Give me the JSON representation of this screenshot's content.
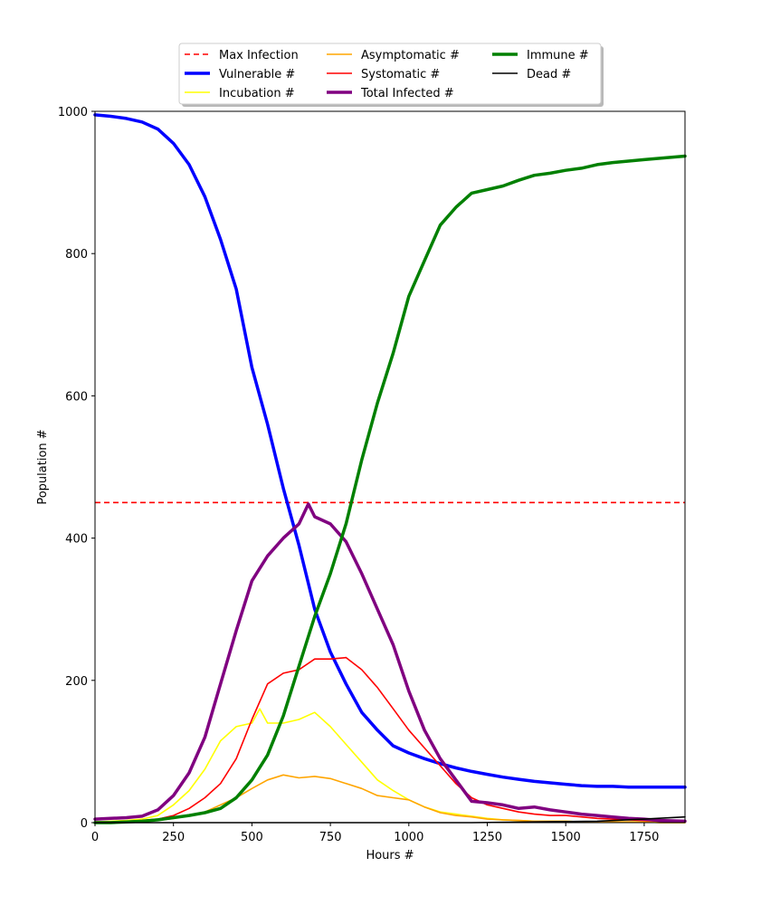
{
  "chart_data": {
    "type": "line",
    "title": "",
    "xlabel": "Hours #",
    "ylabel": "Population #",
    "xlim": [
      0,
      1880
    ],
    "ylim": [
      0,
      1000
    ],
    "xticks": [
      0,
      250,
      500,
      750,
      1000,
      1250,
      1500,
      1750
    ],
    "yticks": [
      0,
      200,
      400,
      600,
      800,
      1000
    ],
    "grid": false,
    "legend_position": "top-center",
    "max_infection": 450,
    "series": [
      {
        "name": "Max Infection",
        "color": "#ff0000",
        "style": "dashed",
        "width": "normal",
        "x": [
          0,
          1880
        ],
        "y": [
          450,
          450
        ]
      },
      {
        "name": "Vulnerable #",
        "color": "#0000ff",
        "style": "solid",
        "width": "thick",
        "x": [
          0,
          50,
          100,
          150,
          200,
          250,
          300,
          350,
          400,
          450,
          500,
          550,
          600,
          650,
          700,
          750,
          800,
          850,
          900,
          950,
          1000,
          1050,
          1100,
          1150,
          1200,
          1250,
          1300,
          1350,
          1400,
          1450,
          1500,
          1550,
          1600,
          1650,
          1700,
          1750,
          1800,
          1880
        ],
        "y": [
          995,
          993,
          990,
          985,
          975,
          955,
          925,
          880,
          820,
          750,
          640,
          560,
          470,
          390,
          300,
          240,
          195,
          155,
          130,
          108,
          98,
          90,
          83,
          77,
          72,
          68,
          64,
          61,
          58,
          56,
          54,
          52,
          51,
          51,
          50,
          50,
          50,
          50
        ]
      },
      {
        "name": "Incubation #",
        "color": "#ffff00",
        "style": "solid",
        "width": "normal",
        "x": [
          0,
          50,
          100,
          150,
          200,
          250,
          300,
          350,
          400,
          450,
          500,
          525,
          550,
          600,
          650,
          700,
          750,
          800,
          850,
          900,
          950,
          1000,
          1050,
          1100,
          1150,
          1200,
          1250,
          1300,
          1350,
          1400,
          1450,
          1500,
          1550,
          1600,
          1650,
          1700,
          1750,
          1800,
          1880
        ],
        "y": [
          1,
          2,
          3,
          5,
          10,
          25,
          45,
          75,
          115,
          135,
          140,
          160,
          140,
          140,
          145,
          155,
          135,
          110,
          85,
          60,
          45,
          32,
          22,
          15,
          12,
          9,
          6,
          4,
          3,
          2,
          2,
          2,
          1,
          1,
          1,
          1,
          1,
          0,
          0
        ]
      },
      {
        "name": "Asymptomatic #",
        "color": "#ffa500",
        "style": "solid",
        "width": "normal",
        "x": [
          0,
          50,
          100,
          150,
          200,
          250,
          300,
          350,
          400,
          450,
          500,
          550,
          600,
          650,
          700,
          750,
          800,
          850,
          900,
          950,
          1000,
          1050,
          1100,
          1150,
          1200,
          1250,
          1300,
          1350,
          1400,
          1450,
          1500,
          1550,
          1600,
          1650,
          1700,
          1750,
          1800,
          1880
        ],
        "y": [
          0,
          1,
          1,
          2,
          3,
          6,
          10,
          15,
          25,
          35,
          48,
          60,
          67,
          63,
          65,
          62,
          55,
          48,
          38,
          35,
          32,
          22,
          14,
          10,
          8,
          5,
          4,
          3,
          2,
          2,
          2,
          1,
          1,
          1,
          1,
          1,
          0,
          0
        ]
      },
      {
        "name": "Systomatic #",
        "color": "#ff0000",
        "style": "solid",
        "width": "normal",
        "x": [
          0,
          50,
          100,
          150,
          200,
          250,
          300,
          350,
          400,
          450,
          500,
          550,
          600,
          650,
          700,
          750,
          800,
          850,
          900,
          950,
          1000,
          1050,
          1100,
          1150,
          1200,
          1250,
          1300,
          1350,
          1400,
          1450,
          1500,
          1550,
          1600,
          1650,
          1700,
          1750,
          1800,
          1880
        ],
        "y": [
          1,
          1,
          2,
          3,
          5,
          10,
          20,
          35,
          55,
          90,
          145,
          195,
          210,
          215,
          230,
          230,
          232,
          215,
          190,
          160,
          130,
          105,
          80,
          55,
          35,
          25,
          20,
          15,
          12,
          10,
          10,
          8,
          6,
          5,
          4,
          3,
          2,
          1
        ]
      },
      {
        "name": "Total Infected #",
        "color": "#800080",
        "style": "solid",
        "width": "thick",
        "x": [
          0,
          50,
          100,
          150,
          200,
          250,
          300,
          350,
          400,
          450,
          500,
          550,
          600,
          650,
          680,
          700,
          750,
          800,
          850,
          900,
          950,
          1000,
          1050,
          1100,
          1150,
          1200,
          1250,
          1300,
          1350,
          1400,
          1450,
          1500,
          1550,
          1600,
          1650,
          1700,
          1750,
          1800,
          1880
        ],
        "y": [
          5,
          6,
          7,
          9,
          18,
          38,
          70,
          120,
          195,
          270,
          340,
          375,
          400,
          420,
          448,
          430,
          420,
          395,
          350,
          300,
          250,
          185,
          130,
          90,
          60,
          30,
          28,
          25,
          20,
          22,
          18,
          15,
          12,
          10,
          8,
          6,
          5,
          3,
          2
        ]
      },
      {
        "name": "Immune #",
        "color": "#008000",
        "style": "solid",
        "width": "thick",
        "x": [
          0,
          50,
          100,
          150,
          200,
          250,
          300,
          350,
          400,
          450,
          500,
          550,
          600,
          650,
          700,
          750,
          800,
          850,
          900,
          950,
          1000,
          1050,
          1100,
          1150,
          1200,
          1250,
          1300,
          1350,
          1400,
          1450,
          1500,
          1550,
          1600,
          1650,
          1700,
          1750,
          1800,
          1880
        ],
        "y": [
          0,
          0,
          1,
          2,
          4,
          7,
          10,
          14,
          20,
          35,
          60,
          95,
          150,
          220,
          290,
          350,
          420,
          510,
          590,
          660,
          740,
          790,
          840,
          865,
          885,
          890,
          895,
          903,
          910,
          913,
          917,
          920,
          925,
          928,
          930,
          932,
          934,
          937
        ]
      },
      {
        "name": "Dead #",
        "color": "#000000",
        "style": "solid",
        "width": "normal",
        "x": [
          0,
          200,
          400,
          600,
          800,
          1000,
          1200,
          1400,
          1600,
          1750,
          1880
        ],
        "y": [
          0,
          0,
          0,
          0,
          0,
          0,
          0,
          1,
          2,
          5,
          8
        ]
      }
    ],
    "legend_columns": [
      [
        "Max Infection",
        "Vulnerable #",
        "Incubation #"
      ],
      [
        "Asymptomatic #",
        "Systomatic #",
        "Total Infected #"
      ],
      [
        "Immune #",
        "Dead #"
      ]
    ]
  }
}
